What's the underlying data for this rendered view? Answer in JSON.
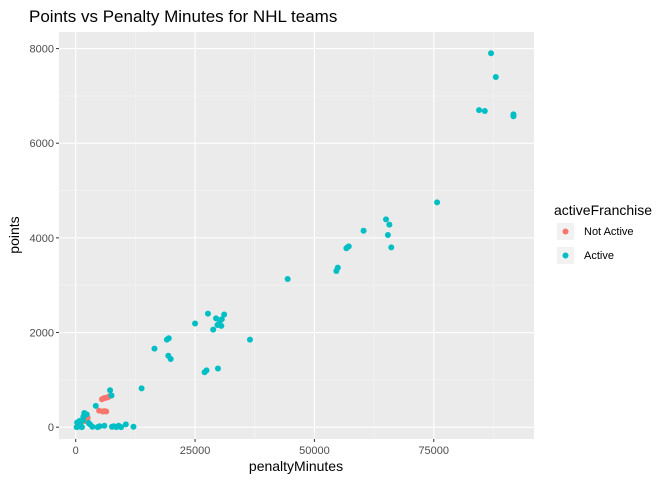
{
  "chart_data": {
    "type": "scatter",
    "title": "Points vs Penalty Minutes for NHL teams",
    "xlabel": "penaltyMinutes",
    "ylabel": "points",
    "xlim": [
      -3500,
      96000
    ],
    "ylim": [
      -250,
      8350
    ],
    "x_ticks": [
      0,
      25000,
      50000,
      75000
    ],
    "x_tick_labels": [
      "0",
      "25000",
      "50000",
      "75000"
    ],
    "y_ticks": [
      0,
      2000,
      4000,
      6000,
      8000
    ],
    "y_tick_labels": [
      "0",
      "2000",
      "4000",
      "6000",
      "8000"
    ],
    "grid": true,
    "legend": {
      "title": "activeFranchise",
      "placement": "right",
      "entries": [
        {
          "label": "Not Active",
          "color": "#F8766D"
        },
        {
          "label": "Active",
          "color": "#00BFC4"
        }
      ]
    },
    "series": [
      {
        "name": "Not Active",
        "color": "#F8766D",
        "points": [
          [
            5500,
            590
          ],
          [
            5900,
            610
          ],
          [
            6200,
            620
          ],
          [
            6700,
            630
          ],
          [
            7000,
            650
          ],
          [
            5700,
            330
          ],
          [
            6000,
            340
          ],
          [
            6400,
            330
          ],
          [
            4900,
            350
          ],
          [
            2200,
            160
          ],
          [
            2500,
            200
          ],
          [
            1900,
            130
          ]
        ]
      },
      {
        "name": "Active",
        "color": "#00BFC4",
        "points": [
          [
            87000,
            7900
          ],
          [
            88000,
            7400
          ],
          [
            84500,
            6700
          ],
          [
            85700,
            6680
          ],
          [
            91700,
            6610
          ],
          [
            91700,
            6570
          ],
          [
            75700,
            4750
          ],
          [
            65000,
            4390
          ],
          [
            65700,
            4280
          ],
          [
            60300,
            4150
          ],
          [
            65400,
            4060
          ],
          [
            66100,
            3800
          ],
          [
            57200,
            3820
          ],
          [
            56900,
            3800
          ],
          [
            56700,
            3780
          ],
          [
            54900,
            3370
          ],
          [
            54600,
            3300
          ],
          [
            44400,
            3130
          ],
          [
            27700,
            2400
          ],
          [
            31100,
            2380
          ],
          [
            29400,
            2300
          ],
          [
            30600,
            2280
          ],
          [
            30100,
            2200
          ],
          [
            29700,
            2160
          ],
          [
            30500,
            2140
          ],
          [
            25000,
            2190
          ],
          [
            28800,
            2060
          ],
          [
            36500,
            1850
          ],
          [
            19500,
            1880
          ],
          [
            19100,
            1850
          ],
          [
            16500,
            1660
          ],
          [
            19400,
            1510
          ],
          [
            19900,
            1440
          ],
          [
            29800,
            1240
          ],
          [
            27400,
            1200
          ],
          [
            27000,
            1160
          ],
          [
            13800,
            820
          ],
          [
            7200,
            780
          ],
          [
            7500,
            670
          ],
          [
            4200,
            450
          ],
          [
            1800,
            300
          ],
          [
            2300,
            270
          ],
          [
            9000,
            30
          ],
          [
            10500,
            60
          ],
          [
            12100,
            10
          ],
          [
            8000,
            20
          ],
          [
            6000,
            30
          ],
          [
            5000,
            20
          ],
          [
            3000,
            60
          ],
          [
            3500,
            10
          ],
          [
            4600,
            0
          ],
          [
            500,
            10
          ],
          [
            1000,
            50
          ],
          [
            300,
            100
          ],
          [
            1600,
            220
          ],
          [
            2700,
            90
          ],
          [
            800,
            130
          ],
          [
            200,
            0
          ],
          [
            1300,
            0
          ],
          [
            7600,
            10
          ],
          [
            8500,
            0
          ],
          [
            1500,
            150
          ],
          [
            9500,
            0
          ]
        ]
      }
    ]
  }
}
